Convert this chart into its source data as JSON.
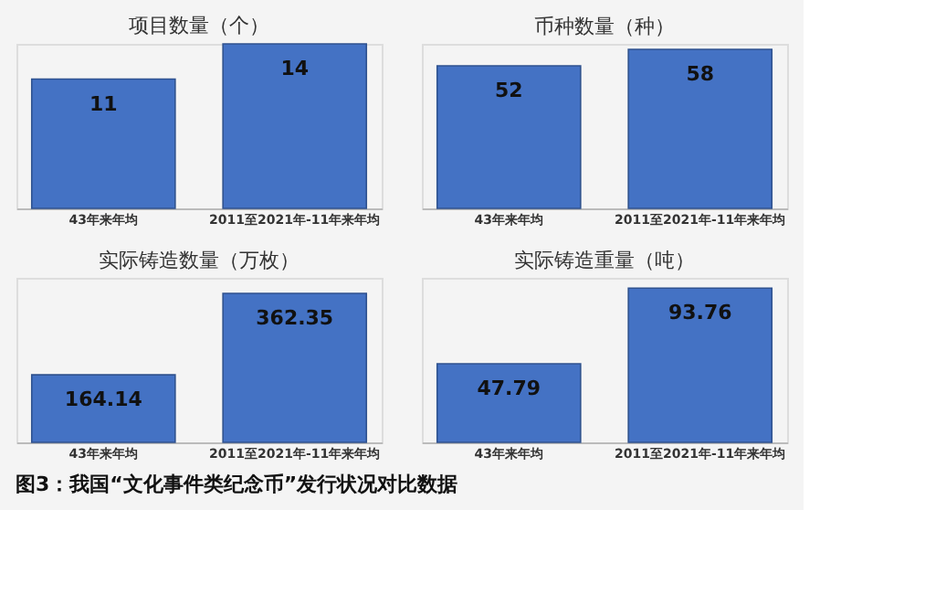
{
  "chart_data": [
    {
      "type": "bar",
      "title": "项目数量（个）",
      "categories": [
        "43年来年均",
        "2011至2021年-11年来年均"
      ],
      "values": [
        11,
        14
      ],
      "color": "#4472c4",
      "data_labels": true
    },
    {
      "type": "bar",
      "title": "币种数量（种）",
      "categories": [
        "43年来年均",
        "2011至2021年-11年来年均"
      ],
      "values": [
        52,
        58
      ],
      "color": "#4472c4",
      "data_labels": true
    },
    {
      "type": "bar",
      "title": "实际铸造数量（万枚）",
      "categories": [
        "43年来年均",
        "2011至2021年-11年来年均"
      ],
      "values": [
        164.14,
        362.35
      ],
      "color": "#4472c4",
      "data_labels": true
    },
    {
      "type": "bar",
      "title": "实际铸造重量（吨）",
      "categories": [
        "43年来年均",
        "2011至2021年-11年来年均"
      ],
      "values": [
        47.79,
        93.76
      ],
      "color": "#4472c4",
      "data_labels": true,
      "annotations": [
        "图3：我国“文化事件类纪念币”发行状况对比数据"
      ]
    }
  ]
}
